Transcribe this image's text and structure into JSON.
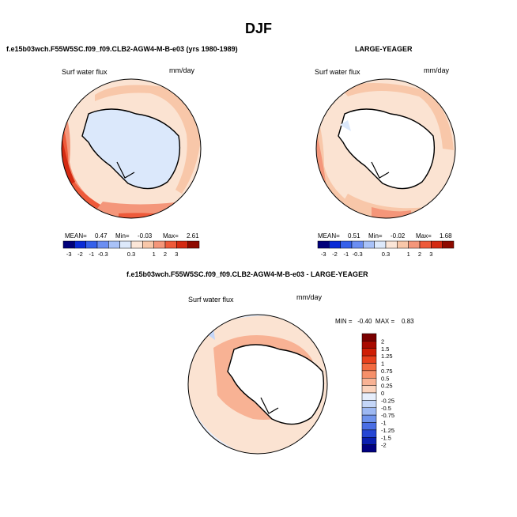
{
  "title": "DJF",
  "panels": [
    {
      "caption": "f.e15b03wch.F55W5SC.f09_f09.CLB2-AGW4-M-B-e03 (yrs 1980-1989)",
      "variable": "Surf water flux",
      "units": "mm/day",
      "mean_label": "MEAN=",
      "mean": "0.47",
      "min_label": "Min=",
      "min": "-0.03",
      "max_label": "Max=",
      "max": "2.61"
    },
    {
      "caption": "LARGE-YEAGER",
      "variable": "Surf water flux",
      "units": "mm/day",
      "mean_label": "MEAN=",
      "mean": "0.51",
      "min_label": "Min=",
      "min": "-0.02",
      "max_label": "Max=",
      "max": "1.68"
    },
    {
      "caption": "f.e15b03wch.F55W5SC.f09_f09.CLB2-AGW4-M-B-e03 - LARGE-YEAGER",
      "variable": "Surf water flux",
      "units": "mm/day",
      "minmax": "MIN =   -0.40  MAX =    0.83"
    }
  ],
  "colorbar_top": {
    "ticks": [
      "-3",
      "-2",
      "-1",
      "-0.3",
      "0.3",
      "1",
      "2",
      "3"
    ],
    "colors": [
      "#00007a",
      "#0a2bd6",
      "#3560ea",
      "#6b8ef2",
      "#a9c2f8",
      "#dde9fb",
      "#fbe6d8",
      "#f8c7a9",
      "#f4967a",
      "#ee5a3a",
      "#d42a12",
      "#8e0a00"
    ]
  },
  "colorbar_diff": {
    "labels": [
      "2",
      "1.5",
      "1.25",
      "1",
      "0.75",
      "0.5",
      "0.25",
      "0",
      "-0.25",
      "-0.5",
      "-0.75",
      "-1",
      "-1.25",
      "-1.5",
      "-2"
    ],
    "colors": [
      "#7a0000",
      "#a80a00",
      "#cf1e05",
      "#e8401c",
      "#f26a40",
      "#f6906a",
      "#f8b294",
      "#fbd3bd",
      "#e6eefc",
      "#c4d6f8",
      "#9db8f2",
      "#6f93ec",
      "#4a6ee4",
      "#2546d4",
      "#0a1fb0",
      "#000080"
    ]
  }
}
